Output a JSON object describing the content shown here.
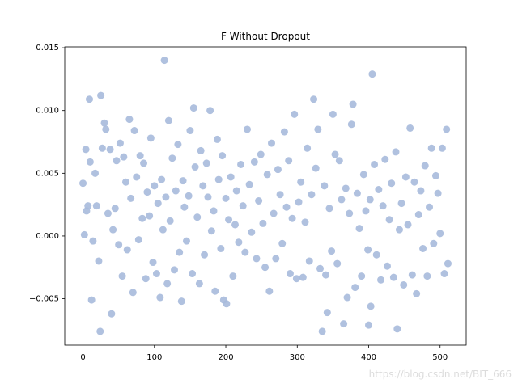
{
  "chart_data": {
    "type": "scatter",
    "title": "F Without Dropout",
    "watermark": "https://blog.csdn.net/BIT_666",
    "color": "#a7badb",
    "x": [
      0,
      2,
      4,
      5,
      7,
      9,
      10,
      12,
      14,
      17,
      19,
      22,
      24,
      25,
      27,
      30,
      32,
      35,
      38,
      40,
      42,
      45,
      47,
      50,
      52,
      55,
      57,
      60,
      62,
      65,
      67,
      70,
      72,
      75,
      78,
      80,
      83,
      85,
      88,
      90,
      93,
      95,
      98,
      100,
      103,
      105,
      108,
      110,
      112,
      114,
      116,
      118,
      120,
      122,
      125,
      128,
      130,
      133,
      135,
      138,
      140,
      142,
      145,
      148,
      150,
      153,
      155,
      157,
      160,
      163,
      165,
      168,
      170,
      173,
      175,
      178,
      180,
      183,
      185,
      188,
      190,
      193,
      195,
      197,
      200,
      201,
      204,
      207,
      210,
      213,
      215,
      218,
      221,
      224,
      227,
      230,
      233,
      236,
      240,
      243,
      246,
      249,
      252,
      255,
      258,
      261,
      264,
      267,
      270,
      273,
      276,
      279,
      282,
      285,
      288,
      290,
      293,
      296,
      299,
      302,
      305,
      308,
      311,
      314,
      317,
      320,
      323,
      326,
      329,
      332,
      335,
      338,
      340,
      342,
      345,
      348,
      350,
      353,
      356,
      359,
      362,
      365,
      368,
      370,
      373,
      376,
      378,
      381,
      384,
      387,
      390,
      393,
      396,
      399,
      400,
      402,
      403,
      405,
      408,
      411,
      414,
      417,
      420,
      423,
      426,
      429,
      432,
      435,
      438,
      440,
      443,
      446,
      449,
      452,
      455,
      458,
      461,
      464,
      467,
      470,
      473,
      476,
      479,
      482,
      485,
      488,
      491,
      494,
      497,
      500,
      503,
      506,
      509,
      511
    ],
    "values": [
      0.0042,
      0.0001,
      0.0069,
      0.002,
      0.0024,
      0.0109,
      0.0059,
      -0.0051,
      -0.0004,
      0.005,
      0.0024,
      -0.002,
      -0.0076,
      0.0112,
      0.007,
      0.009,
      0.0085,
      0.0018,
      0.0069,
      -0.0062,
      0.0005,
      0.0022,
      0.006,
      -0.0007,
      0.0074,
      -0.0032,
      0.0063,
      0.0043,
      -0.0011,
      0.0093,
      0.003,
      -0.0045,
      0.0084,
      0.0047,
      -0.0003,
      0.0064,
      0.0014,
      0.0058,
      -0.0034,
      0.0035,
      0.0016,
      0.0078,
      -0.0021,
      0.004,
      -0.003,
      0.0026,
      -0.0049,
      0.0045,
      0.0005,
      0.014,
      0.0031,
      -0.0038,
      0.0092,
      0.0012,
      0.0062,
      -0.0027,
      0.0036,
      0.0073,
      -0.0013,
      -0.0052,
      0.0044,
      0.0023,
      -0.0004,
      0.0032,
      0.0084,
      -0.003,
      0.0102,
      0.0055,
      0.0015,
      -0.0038,
      0.0068,
      0.004,
      -0.0015,
      0.0058,
      0.0031,
      0.01,
      0.0004,
      0.002,
      -0.0044,
      0.0077,
      0.0045,
      -0.001,
      0.0064,
      -0.0051,
      0.003,
      -0.0054,
      0.0013,
      0.0047,
      -0.0032,
      0.0009,
      0.0036,
      -0.0005,
      0.0057,
      0.0024,
      -0.0013,
      0.0085,
      0.0041,
      0.0003,
      0.0059,
      -0.0018,
      0.0028,
      0.0065,
      0.001,
      -0.0025,
      0.0049,
      -0.0044,
      0.0074,
      0.0018,
      -0.0018,
      0.0053,
      0.0033,
      -0.0006,
      0.0083,
      0.0023,
      0.006,
      -0.003,
      0.0014,
      0.0097,
      -0.0034,
      0.0027,
      0.0043,
      -0.0033,
      0.0011,
      0.007,
      -0.002,
      0.0033,
      0.0109,
      0.0054,
      0.0085,
      -0.0026,
      -0.0076,
      0.004,
      -0.0031,
      -0.0061,
      0.0022,
      -0.0012,
      0.0097,
      0.0065,
      -0.0022,
      0.006,
      0.0029,
      -0.007,
      0.0038,
      -0.0049,
      0.0018,
      0.0089,
      0.0105,
      -0.0041,
      0.0034,
      0.0006,
      -0.0032,
      0.0049,
      0.002,
      -0.0011,
      -0.0071,
      0.0029,
      -0.0056,
      0.0129,
      0.0057,
      -0.0015,
      0.0037,
      -0.0035,
      0.0024,
      0.0061,
      -0.0024,
      0.0013,
      0.0042,
      -0.0033,
      0.0067,
      -0.0074,
      0.0005,
      0.0026,
      -0.0039,
      0.0047,
      0.0009,
      0.0086,
      -0.0031,
      0.0043,
      -0.0046,
      0.0017,
      0.0036,
      -0.001,
      0.0056,
      -0.0032,
      0.0023,
      0.007,
      -0.0006,
      0.0048,
      0.0034,
      0.0002,
      0.007,
      -0.003,
      0.0085,
      -0.0022
    ],
    "xlim": [
      -25.55,
      536.55
    ],
    "xticks": [
      0,
      100,
      200,
      300,
      400,
      500
    ],
    "ylim": [
      -0.0087,
      0.01507
    ],
    "yticks": [
      {
        "value": -0.005,
        "label": "−0.005"
      },
      {
        "value": 0,
        "label": "0.000"
      },
      {
        "value": 0.005,
        "label": "0.005"
      },
      {
        "value": 0.01,
        "label": "0.010"
      },
      {
        "value": 0.015,
        "label": "0.015"
      }
    ]
  }
}
